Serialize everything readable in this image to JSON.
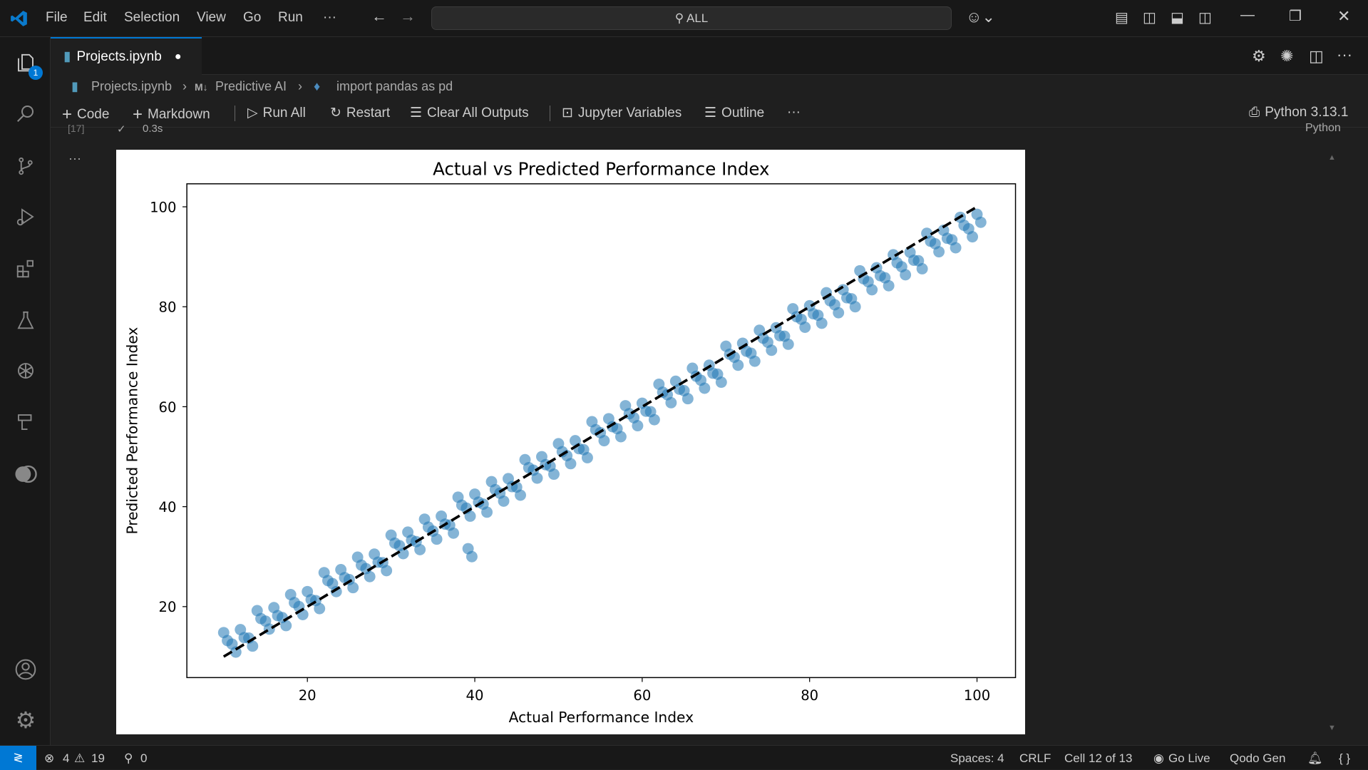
{
  "titlebar": {
    "menu": [
      "File",
      "Edit",
      "Selection",
      "View",
      "Go",
      "Run",
      "···"
    ],
    "search": "ALL"
  },
  "activity_badge": "1",
  "tab": {
    "label": "Projects.ipynb"
  },
  "breadcrumb": [
    "Projects.ipynb",
    "Predictive AI",
    "import pandas as pd"
  ],
  "breadcrumb_md": "M↓",
  "toolbar": {
    "code": "Code",
    "markdown": "Markdown",
    "run_all": "Run All",
    "restart": "Restart",
    "clear": "Clear All Outputs",
    "variables": "Jupyter Variables",
    "outline": "Outline",
    "more": "···",
    "kernel": "Python 3.13.1"
  },
  "cell": {
    "exec": "[17]",
    "time": "0.3s",
    "lang": "Python",
    "more": "···"
  },
  "status": {
    "errors": "4",
    "warnings": "19",
    "ports": "0",
    "spaces": "Spaces: 4",
    "eol": "CRLF",
    "cell": "Cell 12 of 13",
    "golive": "Go Live",
    "qodo": "Qodo Gen"
  },
  "colors": {
    "accent": "#0078d4",
    "marker": "#1f77b4"
  },
  "chart_data": {
    "type": "scatter",
    "title": "Actual vs Predicted Performance Index",
    "xlabel": "Actual Performance Index",
    "ylabel": "Predicted Performance Index",
    "xlim": [
      5.6,
      104.6
    ],
    "ylim": [
      5.8,
      104.6
    ],
    "xticks": [
      20,
      40,
      60,
      80,
      100
    ],
    "yticks": [
      20,
      40,
      60,
      80,
      100
    ],
    "grid": false,
    "reference_line": {
      "from": [
        10,
        10
      ],
      "to": [
        100,
        100
      ],
      "style": "dashed",
      "color": "#000000"
    },
    "points": [
      [
        10,
        14.8
      ],
      [
        11,
        12.5
      ],
      [
        12,
        15.4
      ],
      [
        13,
        13.7
      ],
      [
        14,
        19.2
      ],
      [
        15,
        17.1
      ],
      [
        16,
        19.8
      ],
      [
        17,
        17.8
      ],
      [
        18,
        22.4
      ],
      [
        19,
        20.0
      ],
      [
        20,
        23.0
      ],
      [
        21,
        21.2
      ],
      [
        22,
        26.8
      ],
      [
        23,
        24.6
      ],
      [
        24,
        27.4
      ],
      [
        25,
        25.4
      ],
      [
        26,
        29.9
      ],
      [
        27,
        27.6
      ],
      [
        28,
        30.5
      ],
      [
        29,
        28.8
      ],
      [
        30,
        34.3
      ],
      [
        31,
        32.2
      ],
      [
        32,
        34.9
      ],
      [
        33,
        33.0
      ],
      [
        34,
        37.5
      ],
      [
        35,
        35.1
      ],
      [
        36,
        38.1
      ],
      [
        37,
        36.3
      ],
      [
        38,
        41.9
      ],
      [
        39,
        39.7
      ],
      [
        40,
        42.5
      ],
      [
        41,
        40.5
      ],
      [
        42,
        45.0
      ],
      [
        43,
        42.7
      ],
      [
        44,
        45.6
      ],
      [
        45,
        43.9
      ],
      [
        46,
        49.4
      ],
      [
        47,
        47.3
      ],
      [
        48,
        50.0
      ],
      [
        49,
        48.1
      ],
      [
        50,
        52.6
      ],
      [
        51,
        50.2
      ],
      [
        52,
        53.2
      ],
      [
        53,
        51.4
      ],
      [
        54,
        57.0
      ],
      [
        55,
        54.8
      ],
      [
        56,
        57.6
      ],
      [
        57,
        55.6
      ],
      [
        58,
        60.2
      ],
      [
        59,
        57.8
      ],
      [
        60,
        60.7
      ],
      [
        61,
        59.0
      ],
      [
        62,
        64.5
      ],
      [
        63,
        62.4
      ],
      [
        64,
        65.1
      ],
      [
        65,
        63.2
      ],
      [
        66,
        67.7
      ],
      [
        67,
        65.3
      ],
      [
        68,
        68.3
      ],
      [
        69,
        66.5
      ],
      [
        70,
        72.1
      ],
      [
        71,
        69.9
      ],
      [
        72,
        72.7
      ],
      [
        73,
        70.7
      ],
      [
        74,
        75.3
      ],
      [
        75,
        72.9
      ],
      [
        76,
        75.8
      ],
      [
        77,
        74.1
      ],
      [
        78,
        79.6
      ],
      [
        79,
        77.5
      ],
      [
        80,
        80.2
      ],
      [
        81,
        78.3
      ],
      [
        82,
        82.8
      ],
      [
        83,
        80.4
      ],
      [
        84,
        83.4
      ],
      [
        85,
        81.6
      ],
      [
        86,
        87.2
      ],
      [
        87,
        85.0
      ],
      [
        88,
        87.8
      ],
      [
        89,
        85.8
      ],
      [
        90,
        90.4
      ],
      [
        91,
        88.0
      ],
      [
        92,
        90.9
      ],
      [
        93,
        89.2
      ],
      [
        94,
        94.7
      ],
      [
        95,
        92.6
      ],
      [
        96,
        95.3
      ],
      [
        97,
        93.4
      ],
      [
        98,
        97.9
      ],
      [
        99,
        95.6
      ],
      [
        100,
        98.5
      ],
      [
        39.2,
        31.6
      ]
    ]
  }
}
